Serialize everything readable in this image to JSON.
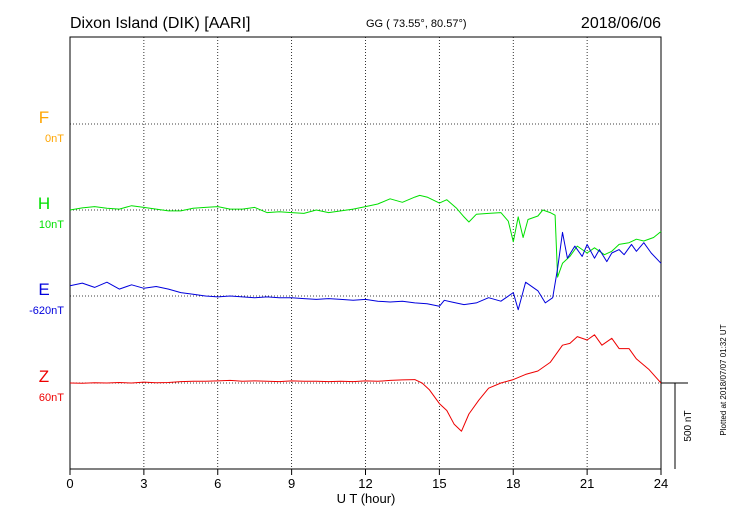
{
  "chart_data": {
    "type": "line",
    "title": "Dixon Island (DIK)  [AARI]",
    "coords": "GG ( 73.55°,  80.57°)",
    "date": "2018/06/06",
    "xlabel": "U T (hour)",
    "xlim": [
      0,
      24
    ],
    "xticks": [
      "0",
      "3",
      "6",
      "9",
      "12",
      "15",
      "18",
      "21",
      "24"
    ],
    "grid": true,
    "scale_bar": "500 nT",
    "scale_nt": 500,
    "plotted_at": "Plotted at 2018/07/07 01:32 UT",
    "channels": [
      {
        "name": "F",
        "offset": "0nT",
        "color": "#ffa500",
        "baseline": null,
        "x": [],
        "y": []
      },
      {
        "name": "H",
        "offset": "10nT",
        "color": "#00e000",
        "baseline": 10,
        "x": [
          0,
          0.5,
          1,
          1.5,
          2,
          2.5,
          3,
          3.5,
          4,
          4.5,
          5,
          5.5,
          6,
          6.5,
          7,
          7.5,
          8,
          8.5,
          9,
          9.5,
          10,
          10.5,
          11,
          11.5,
          12,
          12.5,
          13,
          13.5,
          14,
          14.2,
          14.5,
          15,
          15.3,
          15.7,
          16,
          16.2,
          16.5,
          17,
          17.5,
          17.8,
          18,
          18.2,
          18.4,
          18.6,
          19,
          19.2,
          19.5,
          19.7,
          19.8,
          20,
          20.3,
          20.6,
          21,
          21.3,
          21.7,
          22,
          22.3,
          22.7,
          23,
          23.3,
          23.7,
          24
        ],
        "y": [
          10,
          22,
          30,
          20,
          15,
          35,
          25,
          15,
          5,
          5,
          20,
          25,
          30,
          15,
          15,
          25,
          -5,
          0,
          -5,
          -10,
          10,
          -5,
          5,
          15,
          30,
          45,
          75,
          55,
          85,
          95,
          85,
          50,
          70,
          20,
          -30,
          -60,
          -15,
          -10,
          -5,
          -55,
          -175,
          -30,
          -150,
          -45,
          -25,
          10,
          -5,
          -20,
          -380,
          -300,
          -260,
          -200,
          -240,
          -210,
          -250,
          -230,
          -190,
          -180,
          -160,
          -170,
          -150,
          -115
        ]
      },
      {
        "name": "E",
        "offset": "-620nT",
        "color": "#0000dd",
        "baseline": -620,
        "x": [
          0,
          0.5,
          1,
          1.5,
          2,
          2.5,
          3,
          3.5,
          4,
          4.5,
          5,
          5.5,
          6,
          6.5,
          7,
          7.5,
          8,
          8.5,
          9,
          9.5,
          10,
          10.5,
          11,
          11.5,
          12,
          12.5,
          13,
          13.5,
          14,
          14.5,
          15,
          15.2,
          15.5,
          16,
          16.5,
          17,
          17.5,
          18,
          18.2,
          18.5,
          19,
          19.3,
          19.6,
          19.8,
          20,
          20.2,
          20.5,
          20.8,
          21,
          21.3,
          21.5,
          21.8,
          22,
          22.3,
          22.5,
          22.8,
          23,
          23.3,
          23.6,
          24
        ],
        "y": [
          -560,
          -545,
          -570,
          -540,
          -580,
          -555,
          -575,
          -565,
          -580,
          -600,
          -610,
          -620,
          -625,
          -620,
          -625,
          -630,
          -625,
          -630,
          -630,
          -635,
          -640,
          -635,
          -640,
          -645,
          -640,
          -650,
          -655,
          -650,
          -660,
          -665,
          -680,
          -645,
          -655,
          -670,
          -660,
          -630,
          -650,
          -600,
          -700,
          -540,
          -590,
          -660,
          -630,
          -460,
          -250,
          -400,
          -330,
          -390,
          -320,
          -400,
          -350,
          -420,
          -370,
          -350,
          -380,
          -320,
          -360,
          -310,
          -370,
          -430
        ]
      },
      {
        "name": "Z",
        "offset": "60nT",
        "color": "#ee0000",
        "baseline": 60,
        "x": [
          0,
          0.5,
          1,
          1.5,
          2,
          2.5,
          3,
          3.5,
          4,
          4.5,
          5,
          5.5,
          6,
          6.5,
          7,
          7.5,
          8,
          8.5,
          9,
          9.5,
          10,
          10.5,
          11,
          11.5,
          12,
          12.5,
          13,
          13.5,
          14,
          14.3,
          14.6,
          15,
          15.3,
          15.6,
          15.9,
          16.2,
          16.6,
          17,
          17.5,
          18,
          18.5,
          19,
          19.5,
          20,
          20.3,
          20.6,
          21,
          21.3,
          21.6,
          22,
          22.3,
          22.7,
          23,
          23.5,
          24
        ],
        "y": [
          60,
          58,
          62,
          60,
          63,
          60,
          65,
          62,
          63,
          68,
          70,
          70,
          72,
          75,
          70,
          72,
          70,
          68,
          72,
          70,
          70,
          68,
          70,
          68,
          72,
          70,
          75,
          78,
          80,
          60,
          20,
          -60,
          -100,
          -180,
          -220,
          -120,
          -40,
          30,
          60,
          80,
          110,
          130,
          180,
          280,
          290,
          330,
          310,
          340,
          280,
          320,
          260,
          260,
          200,
          140,
          60
        ]
      }
    ]
  }
}
